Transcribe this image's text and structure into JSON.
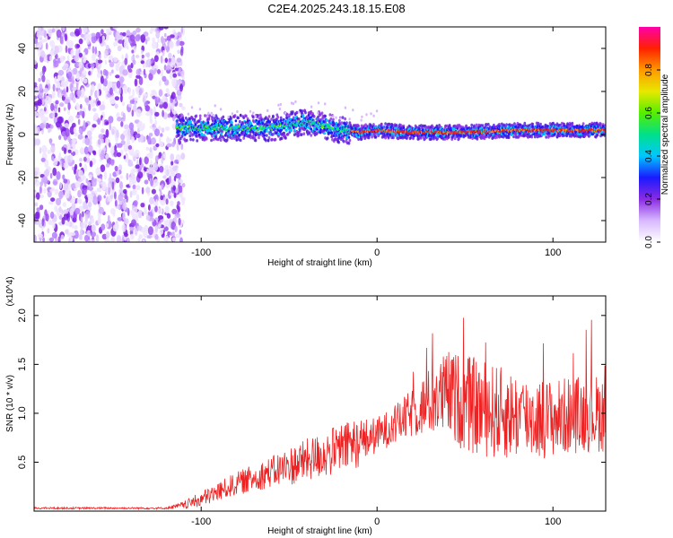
{
  "title": "C2E4.2025.243.18.15.E08",
  "chart_data": [
    {
      "type": "heatmap",
      "title": "C2E4.2025.243.18.15.E08",
      "xlabel": "Height of straight line (km)",
      "ylabel": "Frequency (Hz)",
      "xlim": [
        -195,
        130
      ],
      "ylim": [
        -50,
        50
      ],
      "xticks": [
        -100,
        0,
        100
      ],
      "yticks": [
        40,
        20,
        0,
        -20,
        -40
      ],
      "colorbar": {
        "label": "Normalized spectral amplitude",
        "range": [
          0,
          1
        ],
        "ticks": [
          "0.0",
          "0.2",
          "0.4",
          "0.6",
          "0.8"
        ],
        "colors": [
          "#ffffff",
          "#d8b8ff",
          "#8a2be2",
          "#1a1aff",
          "#00c8ff",
          "#00e08a",
          "#55ee00",
          "#e8e800",
          "#ff9900",
          "#ff2000",
          "#ff00aa"
        ]
      },
      "description_trace": {
        "noise_region_x": [
          -195,
          -110
        ],
        "signal_center_hz": [
          [
            -115,
            3
          ],
          [
            -80,
            3
          ],
          [
            -60,
            3
          ],
          [
            -40,
            6
          ],
          [
            -20,
            2
          ],
          [
            -10,
            1
          ],
          [
            0,
            2
          ],
          [
            20,
            1
          ],
          [
            50,
            1
          ],
          [
            80,
            2
          ],
          [
            130,
            2
          ]
        ]
      }
    },
    {
      "type": "line",
      "xlabel": "Height of straight line (km)",
      "ylabel": "SNR (10 * v/v)",
      "yscale_label": "(x10^4)",
      "xlim": [
        -195,
        130
      ],
      "ylim": [
        0,
        2.2
      ],
      "xticks": [
        -100,
        0,
        100
      ],
      "yticks": [
        2.0,
        1.5,
        1.0,
        0.5
      ],
      "color": "#ee2222",
      "envelope": {
        "x": [
          -195,
          -120,
          -110,
          -100,
          -90,
          -80,
          -70,
          -60,
          -50,
          -40,
          -30,
          -20,
          -10,
          0,
          10,
          20,
          30,
          40,
          50,
          60,
          70,
          80,
          90,
          100,
          110,
          120,
          130
        ],
        "mean": [
          0.03,
          0.03,
          0.06,
          0.12,
          0.2,
          0.28,
          0.34,
          0.4,
          0.46,
          0.52,
          0.58,
          0.64,
          0.7,
          0.78,
          0.88,
          1.0,
          1.12,
          1.2,
          1.1,
          1.05,
          1.0,
          0.98,
          0.95,
          0.95,
          0.98,
          1.0,
          1.0
        ],
        "amp": [
          0.01,
          0.01,
          0.04,
          0.08,
          0.1,
          0.12,
          0.14,
          0.16,
          0.2,
          0.22,
          0.24,
          0.26,
          0.25,
          0.18,
          0.2,
          0.25,
          0.35,
          0.45,
          0.5,
          0.5,
          0.48,
          0.45,
          0.42,
          0.4,
          0.4,
          0.4,
          0.4
        ]
      }
    }
  ]
}
